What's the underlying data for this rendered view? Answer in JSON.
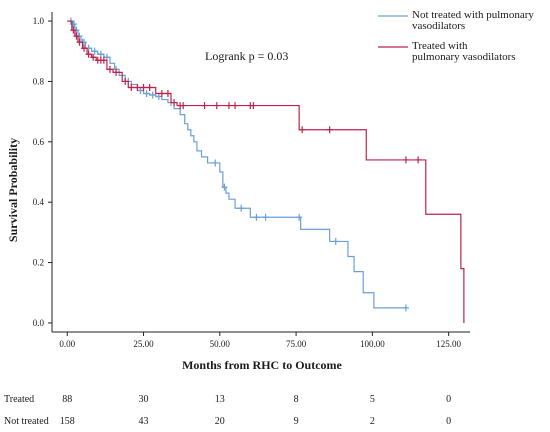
{
  "chart_data": {
    "type": "line",
    "subtype": "kaplan-meier",
    "ylabel": "Survival Probability",
    "xlabel": "Months from RHC to Outcome",
    "xlim": [
      -5,
      132
    ],
    "ylim": [
      -0.03,
      1.03
    ],
    "x_ticks": [
      0,
      25,
      50,
      75,
      100,
      125
    ],
    "x_tick_labels": [
      "0.00",
      "25.00",
      "50.00",
      "75.00",
      "100.00",
      "125.00"
    ],
    "y_ticks": [
      0,
      0.2,
      0.4,
      0.6,
      0.8,
      1.0
    ],
    "y_tick_labels": [
      "0.0",
      "0.2",
      "0.4",
      "0.6",
      "0.8",
      "1.0"
    ],
    "grid": false,
    "legend_position": "top-right",
    "annotation": "Logrank  p = 0.03",
    "series": [
      {
        "name": "Not treated with pulmonary vasodilators",
        "legend_lines": [
          "Not treated with pulmonary",
          "vasodilators"
        ],
        "color": "#6a9fd8",
        "steps": [
          [
            0,
            1.0
          ],
          [
            1.5,
            0.99
          ],
          [
            2.5,
            0.97
          ],
          [
            3.5,
            0.95
          ],
          [
            4.5,
            0.93
          ],
          [
            6,
            0.91
          ],
          [
            8,
            0.9
          ],
          [
            10,
            0.89
          ],
          [
            12,
            0.88
          ],
          [
            14,
            0.86
          ],
          [
            15.5,
            0.84
          ],
          [
            17,
            0.82
          ],
          [
            19,
            0.8
          ],
          [
            21,
            0.79
          ],
          [
            23,
            0.77
          ],
          [
            25,
            0.76
          ],
          [
            27,
            0.755
          ],
          [
            29,
            0.75
          ],
          [
            31,
            0.74
          ],
          [
            33,
            0.73
          ],
          [
            35,
            0.71
          ],
          [
            37,
            0.69
          ],
          [
            38.5,
            0.66
          ],
          [
            39.5,
            0.64
          ],
          [
            40.5,
            0.62
          ],
          [
            41.5,
            0.6
          ],
          [
            42.5,
            0.57
          ],
          [
            44,
            0.55
          ],
          [
            46,
            0.53
          ],
          [
            50,
            0.5
          ],
          [
            51,
            0.45
          ],
          [
            52,
            0.43
          ],
          [
            53,
            0.41
          ],
          [
            55,
            0.38
          ],
          [
            60,
            0.35
          ],
          [
            76.5,
            0.31
          ],
          [
            86,
            0.27
          ],
          [
            92,
            0.22
          ],
          [
            94,
            0.17
          ],
          [
            97,
            0.1
          ],
          [
            100.5,
            0.05
          ],
          [
            111,
            0.05
          ]
        ],
        "censored": [
          [
            1.2,
            1.0
          ],
          [
            1.8,
            0.99
          ],
          [
            2.2,
            0.99
          ],
          [
            3,
            0.97
          ],
          [
            4,
            0.95
          ],
          [
            5,
            0.93
          ],
          [
            5.5,
            0.93
          ],
          [
            7,
            0.91
          ],
          [
            9,
            0.9
          ],
          [
            11,
            0.89
          ],
          [
            13,
            0.88
          ],
          [
            16,
            0.84
          ],
          [
            20,
            0.8
          ],
          [
            24,
            0.77
          ],
          [
            26,
            0.76
          ],
          [
            28,
            0.755
          ],
          [
            30,
            0.75
          ],
          [
            34,
            0.73
          ],
          [
            48.5,
            0.53
          ],
          [
            51.5,
            0.45
          ],
          [
            57,
            0.38
          ],
          [
            62,
            0.35
          ],
          [
            65,
            0.35
          ],
          [
            76,
            0.35
          ],
          [
            88,
            0.27
          ],
          [
            111,
            0.05
          ]
        ]
      },
      {
        "name": "Treated with pulmonary vasodilators",
        "legend_lines": [
          "Treated with",
          "pulmonary vasodilators"
        ],
        "color": "#c0234a",
        "steps": [
          [
            0,
            1.0
          ],
          [
            1.5,
            0.97
          ],
          [
            2.5,
            0.95
          ],
          [
            3.5,
            0.93
          ],
          [
            5,
            0.91
          ],
          [
            6.5,
            0.89
          ],
          [
            8,
            0.88
          ],
          [
            9.5,
            0.87
          ],
          [
            13,
            0.84
          ],
          [
            15,
            0.83
          ],
          [
            18,
            0.8
          ],
          [
            20,
            0.78
          ],
          [
            29,
            0.76
          ],
          [
            34,
            0.73
          ],
          [
            36,
            0.72
          ],
          [
            76,
            0.64
          ],
          [
            98,
            0.54
          ],
          [
            117.5,
            0.36
          ],
          [
            129,
            0.18
          ],
          [
            130,
            0.0
          ]
        ],
        "censored": [
          [
            2,
            0.97
          ],
          [
            3,
            0.95
          ],
          [
            4,
            0.93
          ],
          [
            5.5,
            0.91
          ],
          [
            7,
            0.89
          ],
          [
            8.5,
            0.88
          ],
          [
            10,
            0.87
          ],
          [
            11,
            0.87
          ],
          [
            12,
            0.87
          ],
          [
            14,
            0.84
          ],
          [
            16,
            0.83
          ],
          [
            19,
            0.8
          ],
          [
            21,
            0.78
          ],
          [
            23,
            0.78
          ],
          [
            25,
            0.78
          ],
          [
            27,
            0.78
          ],
          [
            31,
            0.76
          ],
          [
            33,
            0.76
          ],
          [
            35,
            0.73
          ],
          [
            37,
            0.72
          ],
          [
            38,
            0.72
          ],
          [
            45,
            0.72
          ],
          [
            49,
            0.72
          ],
          [
            53,
            0.72
          ],
          [
            55,
            0.72
          ],
          [
            60,
            0.72
          ],
          [
            61,
            0.72
          ],
          [
            77,
            0.64
          ],
          [
            86,
            0.64
          ],
          [
            111,
            0.54
          ],
          [
            115,
            0.54
          ]
        ]
      }
    ]
  },
  "risk_table": {
    "times": [
      0,
      25,
      50,
      75,
      100,
      125
    ],
    "rows": [
      {
        "label": "Treated",
        "counts": [
          "88",
          "30",
          "13",
          "8",
          "5",
          "0"
        ]
      },
      {
        "label": "Not treated",
        "counts": [
          "158",
          "43",
          "20",
          "9",
          "2",
          "0"
        ]
      }
    ]
  }
}
